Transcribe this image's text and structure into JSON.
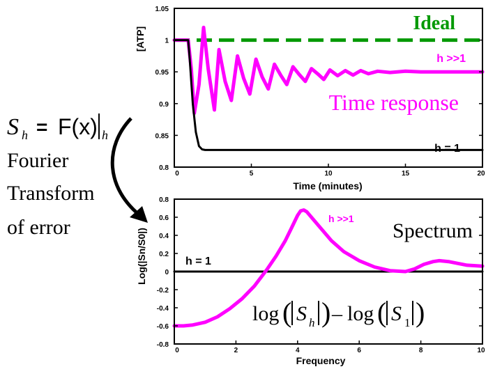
{
  "left_panel": {
    "formula": {
      "symbol": "S",
      "subscript": "h",
      "equals": "=",
      "function": "F(x)",
      "bar_subscript": "h"
    },
    "caption_lines": [
      "Fourier",
      "Transform",
      "of error"
    ]
  },
  "colors": {
    "magenta": "#ff00ff",
    "green": "#009900",
    "black": "#000000"
  },
  "chart_data": [
    {
      "type": "line",
      "title": "Time response",
      "xlabel": "Time (minutes)",
      "ylabel": "[ATP]",
      "xlim": [
        0,
        20
      ],
      "ylim": [
        0.8,
        1.05
      ],
      "xticks": [
        0,
        5,
        10,
        15,
        20
      ],
      "xtick_labels": [
        "0",
        "5",
        "10",
        "15",
        "20"
      ],
      "yticks": [
        0.8,
        0.85,
        0.9,
        0.95,
        1,
        1.05
      ],
      "ytick_labels": [
        "0.8",
        "0.85",
        "0.9",
        "0.95",
        "1",
        "1.05"
      ],
      "series": [
        {
          "name": "Ideal",
          "style": "dashed",
          "color": "#009900",
          "x": [
            0,
            20
          ],
          "y": [
            1.0,
            1.0
          ]
        },
        {
          "name": "h >>1",
          "style": "solid",
          "color": "#ff00ff",
          "x": [
            0,
            0.9,
            1.1,
            1.3,
            1.6,
            1.9,
            2.2,
            2.6,
            2.9,
            3.3,
            3.7,
            4.1,
            4.5,
            4.9,
            5.3,
            5.7,
            6.1,
            6.5,
            6.9,
            7.3,
            7.7,
            8.1,
            8.5,
            8.9,
            9.3,
            9.7,
            10.1,
            10.6,
            11.1,
            11.6,
            12.1,
            12.6,
            13.2,
            14,
            15,
            16,
            17,
            18,
            19,
            20
          ],
          "y": [
            1.0,
            1.0,
            0.955,
            0.885,
            0.93,
            1.02,
            0.955,
            0.89,
            0.985,
            0.935,
            0.905,
            0.975,
            0.94,
            0.915,
            0.97,
            0.942,
            0.923,
            0.962,
            0.945,
            0.93,
            0.958,
            0.946,
            0.935,
            0.955,
            0.947,
            0.938,
            0.953,
            0.944,
            0.952,
            0.945,
            0.952,
            0.947,
            0.951,
            0.949,
            0.951,
            0.95,
            0.95,
            0.95,
            0.95,
            0.95
          ]
        },
        {
          "name": "h = 1",
          "style": "solid",
          "color": "#000000",
          "x": [
            0,
            0.9,
            1.0,
            1.2,
            1.4,
            1.6,
            1.8,
            2.0,
            2.3,
            3,
            5,
            10,
            15,
            20
          ],
          "y": [
            1.0,
            1.0,
            0.97,
            0.9,
            0.855,
            0.833,
            0.828,
            0.827,
            0.827,
            0.827,
            0.827,
            0.827,
            0.827,
            0.827
          ]
        }
      ],
      "annotations": {
        "ideal": "Ideal",
        "hbig": "h >>1",
        "title": "Time response",
        "h1": "h = 1"
      }
    },
    {
      "type": "line",
      "title": "Spectrum",
      "xlabel": "Frequency",
      "ylabel": "Log(|Sn/S0|)",
      "xlim": [
        0,
        10
      ],
      "ylim": [
        -0.8,
        0.8
      ],
      "xticks": [
        0,
        2,
        4,
        6,
        8,
        10
      ],
      "xtick_labels": [
        "0",
        "2",
        "4",
        "6",
        "8",
        "10"
      ],
      "yticks": [
        -0.8,
        -0.6,
        -0.4,
        -0.2,
        0,
        0.2,
        0.4,
        0.6,
        0.8
      ],
      "ytick_labels": [
        "-0.8",
        "-0.6",
        "-0.4",
        "-0.2",
        "0",
        "0.2",
        "0.4",
        "0.6",
        "0.8"
      ],
      "series": [
        {
          "name": "h = 1",
          "style": "solid",
          "color": "#000000",
          "x": [
            0,
            10
          ],
          "y": [
            0,
            0
          ]
        },
        {
          "name": "h >>1",
          "style": "solid",
          "color": "#ff00ff",
          "x": [
            0,
            0.3,
            0.6,
            1.0,
            1.4,
            1.8,
            2.2,
            2.6,
            3.0,
            3.3,
            3.6,
            3.8,
            4.0,
            4.1,
            4.2,
            4.3,
            4.5,
            4.8,
            5.1,
            5.5,
            6.0,
            6.5,
            7.0,
            7.5,
            7.8,
            8.1,
            8.4,
            8.6,
            8.9,
            9.2,
            9.5,
            10
          ],
          "y": [
            -0.6,
            -0.6,
            -0.59,
            -0.56,
            -0.5,
            -0.41,
            -0.3,
            -0.16,
            0.02,
            0.17,
            0.34,
            0.48,
            0.62,
            0.67,
            0.68,
            0.66,
            0.58,
            0.46,
            0.34,
            0.22,
            0.12,
            0.05,
            0.01,
            0.0,
            0.03,
            0.08,
            0.11,
            0.12,
            0.11,
            0.09,
            0.07,
            0.06
          ]
        }
      ],
      "annotations": {
        "hbig": "h >>1",
        "title": "Spectrum",
        "h1": "h = 1",
        "formula": {
          "left": "log",
          "S": "S",
          "sub1": "h",
          "minus": "–",
          "right": "log",
          "sub2": "1"
        }
      }
    }
  ]
}
